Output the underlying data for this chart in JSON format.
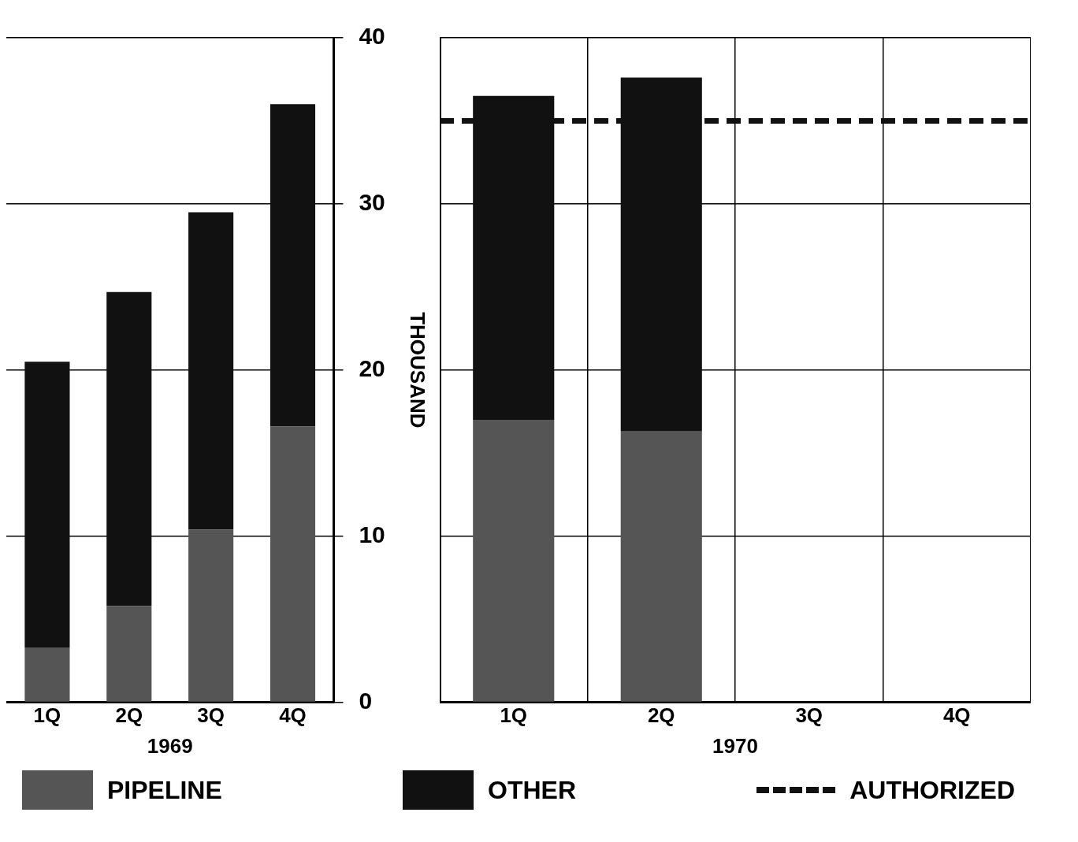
{
  "chart_data": [
    {
      "type": "bar",
      "stacked": true,
      "xlabel": "1969",
      "ylabel": "THOUSAND",
      "categories": [
        "1Q",
        "2Q",
        "3Q",
        "4Q"
      ],
      "series": [
        {
          "name": "PIPELINE",
          "color": "#555555",
          "values": [
            3.3,
            5.8,
            10.4,
            16.6
          ]
        },
        {
          "name": "OTHER",
          "color": "#111111",
          "values": [
            17.2,
            18.9,
            19.1,
            19.4
          ]
        }
      ],
      "ylim": [
        0,
        40
      ],
      "yticks": [
        0,
        10,
        20,
        30,
        40
      ],
      "grid": "y",
      "legend": "bottom"
    },
    {
      "type": "bar",
      "stacked": true,
      "xlabel": "1970",
      "categories": [
        "1Q",
        "2Q",
        "3Q",
        "4Q"
      ],
      "series": [
        {
          "color": "#555555",
          "values": [
            17.0,
            16.3,
            null,
            null
          ]
        },
        {
          "color": "#111111",
          "values": [
            19.5,
            21.3,
            null,
            null
          ]
        }
      ],
      "ylim": [
        0,
        40
      ],
      "yticks": [
        0,
        10,
        20,
        30,
        40
      ],
      "grid": true,
      "tick_labels": "x",
      "ref_lines": [
        {
          "axis": "y",
          "value": 35,
          "label": "AUTHORIZED",
          "color": "#111111",
          "line_style": "dashed"
        }
      ]
    }
  ]
}
